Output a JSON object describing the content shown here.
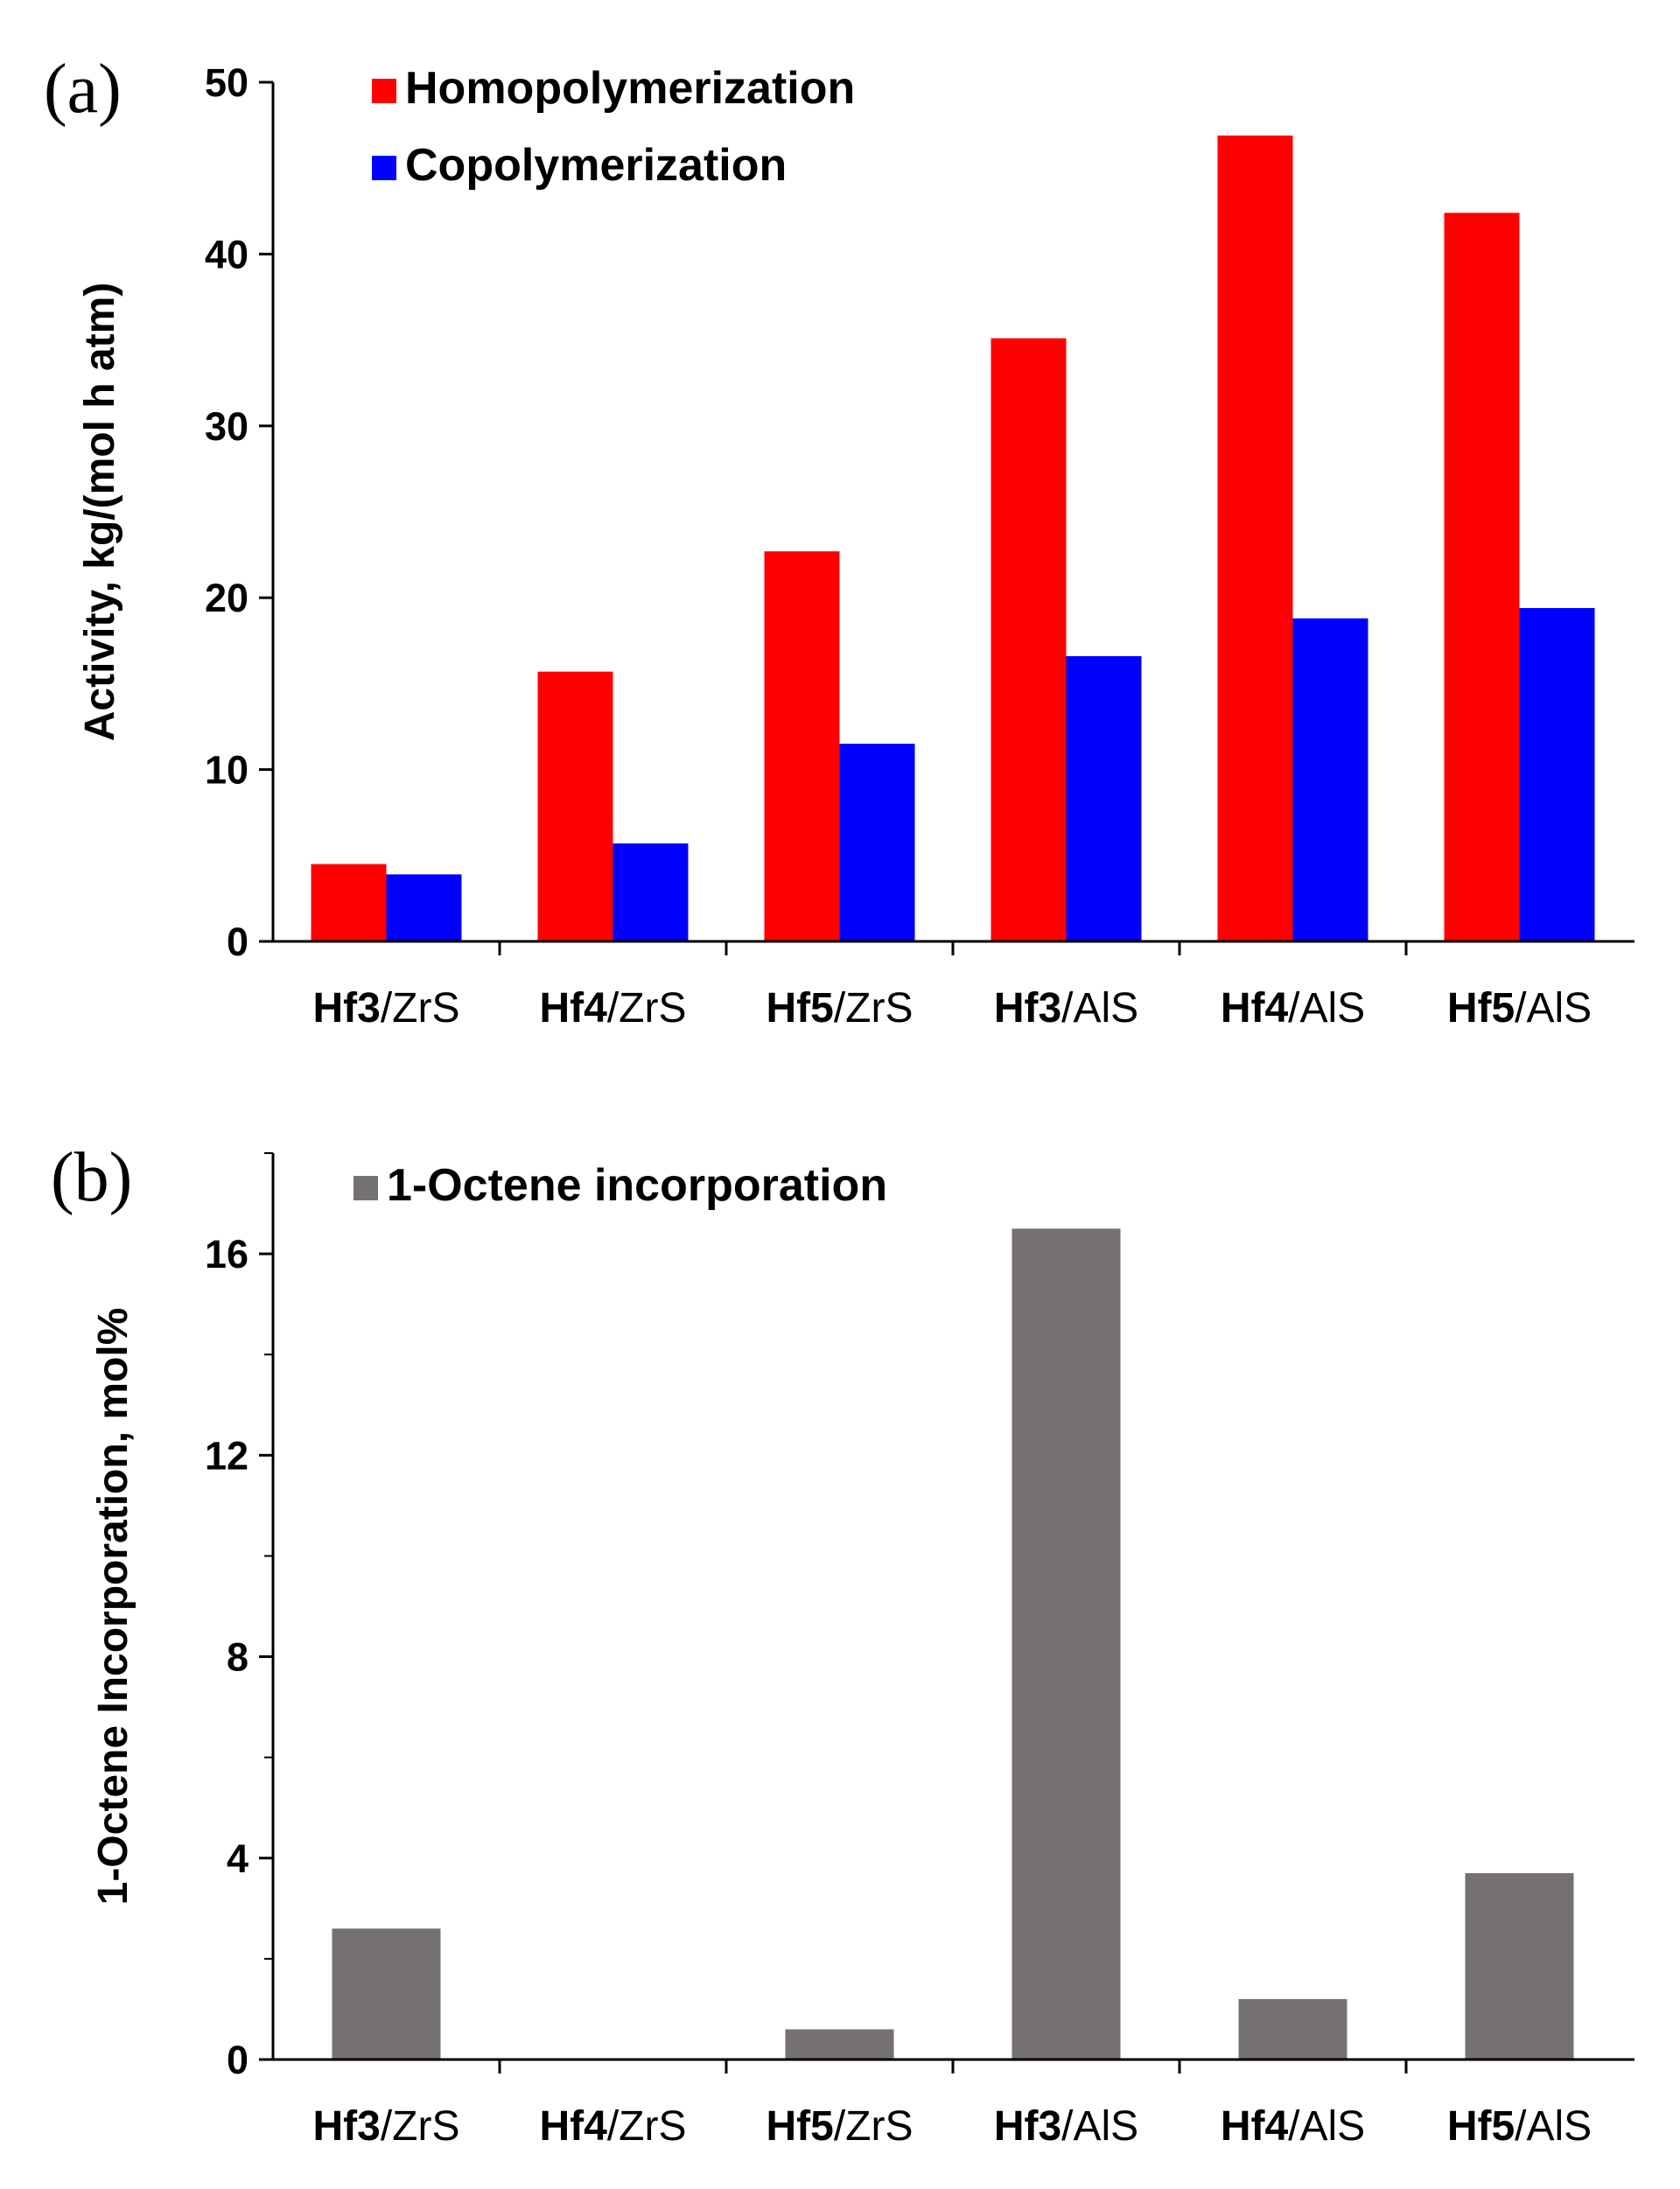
{
  "chart_data": [
    {
      "panel": "(a)",
      "type": "bar",
      "categories": [
        {
          "bold": "Hf3",
          "rest": "/ZrS"
        },
        {
          "bold": "Hf4",
          "rest": "/ZrS"
        },
        {
          "bold": "Hf5",
          "rest": "/ZrS"
        },
        {
          "bold": "Hf3",
          "rest": "/AlS"
        },
        {
          "bold": "Hf4",
          "rest": "/AlS"
        },
        {
          "bold": "Hf5",
          "rest": "/AlS"
        }
      ],
      "series": [
        {
          "name": "Homopolymerization",
          "color": "#ff0000",
          "values": [
            4.5,
            15.7,
            22.7,
            35.1,
            46.9,
            42.4
          ]
        },
        {
          "name": "Copolymerization",
          "color": "#0000ff",
          "values": [
            3.9,
            5.7,
            11.5,
            16.6,
            18.8,
            19.4
          ]
        }
      ],
      "ylabel": "Activity, kg/(mol h atm)",
      "xlabel": "",
      "ylim": [
        0,
        50
      ],
      "yticks": [
        0,
        10,
        20,
        30,
        40,
        50
      ],
      "minor_ticks": false,
      "legend_position": "top-left"
    },
    {
      "panel": "(b)",
      "type": "bar",
      "categories": [
        {
          "bold": "Hf3",
          "rest": "/ZrS"
        },
        {
          "bold": "Hf4",
          "rest": "/ZrS"
        },
        {
          "bold": "Hf5",
          "rest": "/ZrS"
        },
        {
          "bold": "Hf3",
          "rest": "/AlS"
        },
        {
          "bold": "Hf4",
          "rest": "/AlS"
        },
        {
          "bold": "Hf5",
          "rest": "/AlS"
        }
      ],
      "series": [
        {
          "name": "1-Octene incorporation",
          "color": "#767171",
          "values": [
            2.6,
            0,
            0.6,
            16.5,
            1.2,
            3.7
          ]
        }
      ],
      "ylabel": "1-Octene Incorporation, mol%",
      "xlabel": "",
      "ylim": [
        0,
        18
      ],
      "yticks": [
        0,
        4,
        8,
        12,
        16
      ],
      "minor_ticks": true,
      "legend_position": "top-left"
    }
  ]
}
